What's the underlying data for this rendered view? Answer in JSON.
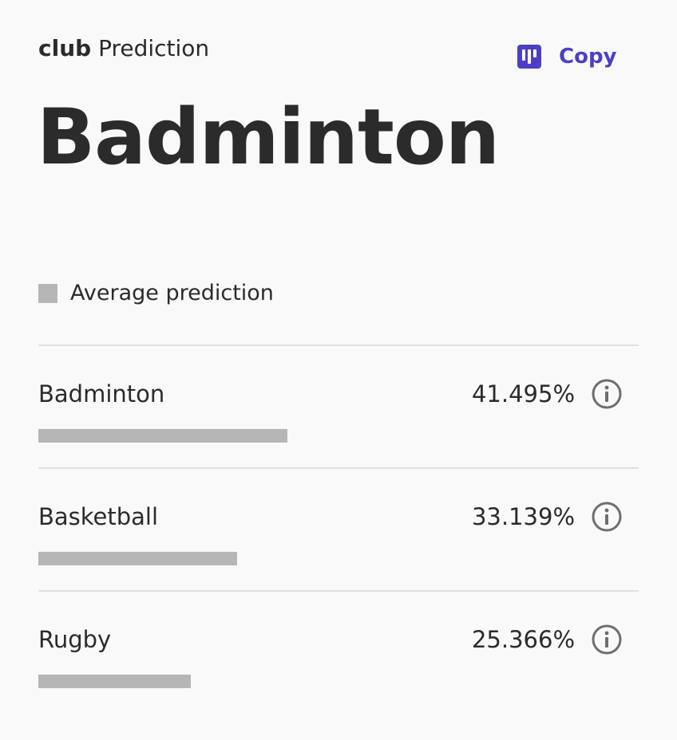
{
  "header": {
    "field_name": "club",
    "suffix": "Prediction"
  },
  "copy_button": {
    "label": "Copy",
    "icon": "copy-icon",
    "color": "#4b3fc6"
  },
  "prediction": {
    "value": "Badminton"
  },
  "legend": {
    "label": "Average prediction",
    "swatch_color": "#b6b6b6"
  },
  "results": [
    {
      "label": "Badminton",
      "percent_text": "41.495%",
      "percent": 41.495,
      "icon": "info-icon"
    },
    {
      "label": "Basketball",
      "percent_text": "33.139%",
      "percent": 33.139,
      "icon": "info-icon"
    },
    {
      "label": "Rugby",
      "percent_text": "25.366%",
      "percent": 25.366,
      "icon": "info-icon"
    }
  ]
}
